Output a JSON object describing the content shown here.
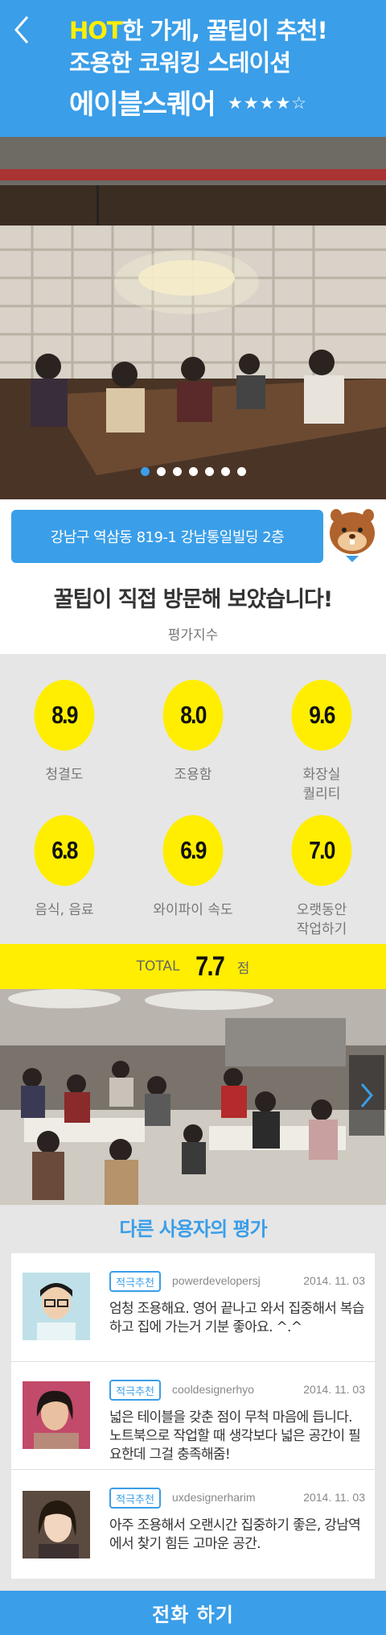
{
  "header": {
    "hot": "HOT",
    "tagline_rest": "한 가게, 꿀팁이 추천!",
    "tagline2": "조용한 코워킹 스테이션",
    "store_name": "에이블스퀘어",
    "rating_stars": "★★★★☆"
  },
  "carousel": {
    "dot_count": 7,
    "active_index": 0
  },
  "address": "강남구 역삼동 819-1 강남통일빌딩 2층",
  "visit": {
    "title": "꿀팁이 직접 방문해 보았습니다!",
    "subtitle": "평가지수"
  },
  "scores": [
    {
      "value": "8.9",
      "label": "청결도"
    },
    {
      "value": "8.0",
      "label": "조용함"
    },
    {
      "value": "9.6",
      "label": "화장실\n퀄리티"
    },
    {
      "value": "6.8",
      "label": "음식, 음료"
    },
    {
      "value": "6.9",
      "label": "와이파이 속도"
    },
    {
      "value": "7.0",
      "label": "오랫동안\n작업하기"
    }
  ],
  "total": {
    "label": "TOTAL",
    "value": "7.7",
    "unit": "점"
  },
  "reviews": {
    "title": "다른 사용자의 평가",
    "items": [
      {
        "badge": "적극추천",
        "user": "powerdevelopersj",
        "date": "2014. 11. 03",
        "text": "엄청 조용해요. 영어 끝나고 와서 집중해서 복습하고 집에 가는거 기분 좋아요. ^.^"
      },
      {
        "badge": "적극추천",
        "user": "cooldesignerhyo",
        "date": "2014. 11. 03",
        "text": "넓은 테이블을 갖춘 점이 무척 마음에 듭니다. 노트북으로 작업할 때 생각보다 넓은 공간이 필요한데 그걸 충족해줌!"
      },
      {
        "badge": "적극추천",
        "user": "uxdesignerharim",
        "date": "2014. 11. 03",
        "text": "아주 조용해서 오랜시간 집중하기 좋은, 강남역에서 찾기 힘든 고마운 공간."
      }
    ]
  },
  "call_button": "전화 하기",
  "colors": {
    "primary": "#3a9ee8",
    "accent": "#ffee00"
  }
}
